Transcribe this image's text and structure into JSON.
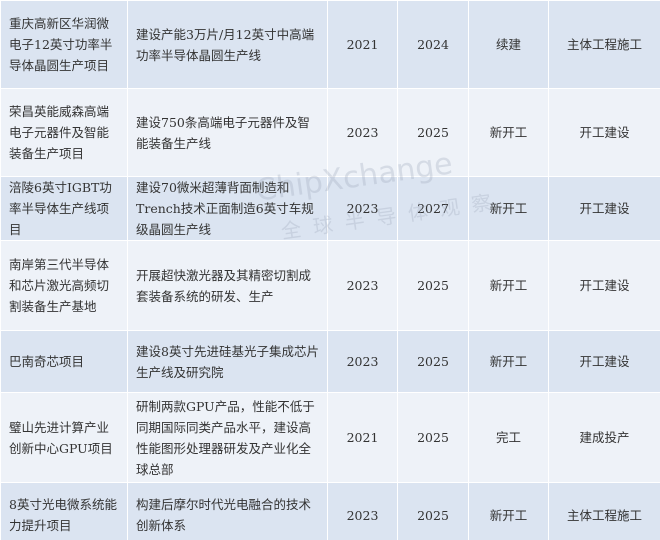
{
  "watermark": {
    "brand": "ChipXchange",
    "slogan": "全球半导体观察"
  },
  "table": {
    "rows": [
      [
        "重庆高新区华润微电子12英寸功率半导体晶圆生产项目",
        "建设产能3万片/月12英寸中高端功率半导体晶圆生产线",
        "2021",
        "2024",
        "续建",
        "主体工程施工"
      ],
      [
        "荣昌英能威森高端电子元器件及智能装备生产项目",
        "建设750条高端电子元器件及智能装备生产线",
        "2023",
        "2025",
        "新开工",
        "开工建设"
      ],
      [
        "涪陵6英寸IGBT功率半导体生产线项目",
        "建设70微米超薄背面制造和Trench技术正面制造6英寸车规级晶圆生产线",
        "2023",
        "2027",
        "新开工",
        "开工建设"
      ],
      [
        "南岸第三代半导体和芯片激光高频切割装备生产基地",
        "开展超快激光器及其精密切割成套装备系统的研发、生产",
        "2023",
        "2025",
        "新开工",
        "开工建设"
      ],
      [
        "巴南奇芯项目",
        "建设8英寸先进硅基光子集成芯片生产线及研究院",
        "2023",
        "2025",
        "新开工",
        "开工建设"
      ],
      [
        "璧山先进计算产业创新中心GPU项目",
        "研制两款GPU产品，性能不低于同期国际同类产品水平，建设高性能图形处理器研发及产业化全球总部",
        "2021",
        "2025",
        "完工",
        "建成投产"
      ],
      [
        "8英寸光电微系统能力提升项目",
        "构建后摩尔时代光电融合的技术创新体系",
        "2023",
        "2025",
        "新开工",
        "主体工程施工"
      ]
    ]
  }
}
